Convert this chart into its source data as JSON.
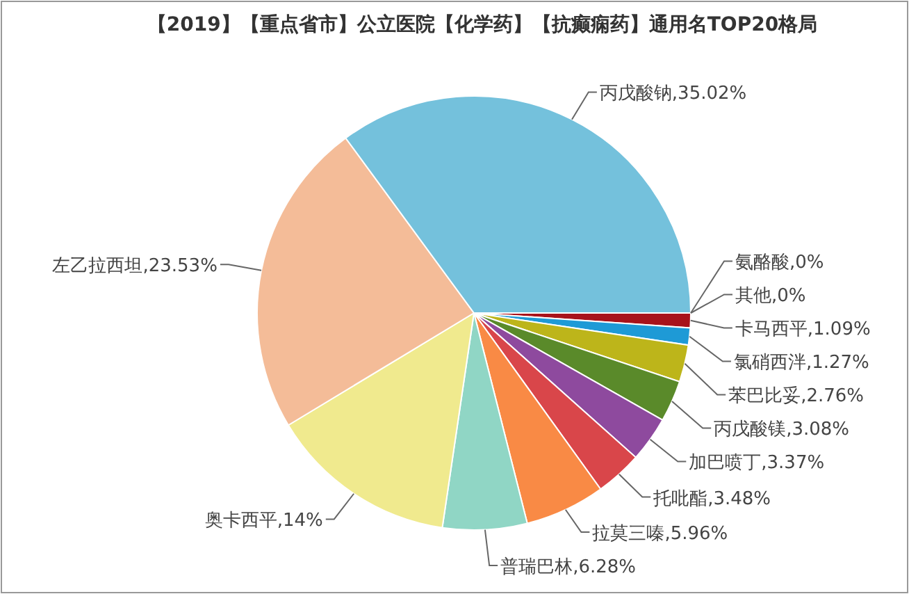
{
  "chart_data": {
    "type": "pie",
    "title": "【2019】【重点省市】公立医院【化学药】【抗癫痫药】通用名TOP20格局",
    "categories": [
      "氨酪酸",
      "其他",
      "卡马西平",
      "氯硝西泮",
      "苯巴比妥",
      "丙戊酸镁",
      "加巴喷丁",
      "托吡酯",
      "拉莫三嗪",
      "普瑞巴林",
      "奥卡西平",
      "左乙拉西坦",
      "丙戊酸钠"
    ],
    "values": [
      0,
      0,
      1.09,
      1.27,
      2.76,
      3.08,
      3.37,
      3.48,
      5.96,
      6.28,
      14,
      23.53,
      35.02
    ],
    "value_labels": [
      ",0%",
      ",0%",
      ",1.09%",
      ",1.27%",
      ",2.76%",
      ",3.08%",
      ",3.37%",
      ",3.48%",
      ",5.96%",
      ",6.28%",
      ",14%",
      ",23.53%",
      ",35.02%"
    ],
    "colors": [
      "#4572a7",
      "#aa4643",
      "#a8131b",
      "#1e9ad6",
      "#bdb51a",
      "#5a8a2a",
      "#8e4a9e",
      "#d9464a",
      "#f98a45",
      "#90d6c5",
      "#f0ea8e",
      "#f4bc98",
      "#74c1dc"
    ]
  }
}
